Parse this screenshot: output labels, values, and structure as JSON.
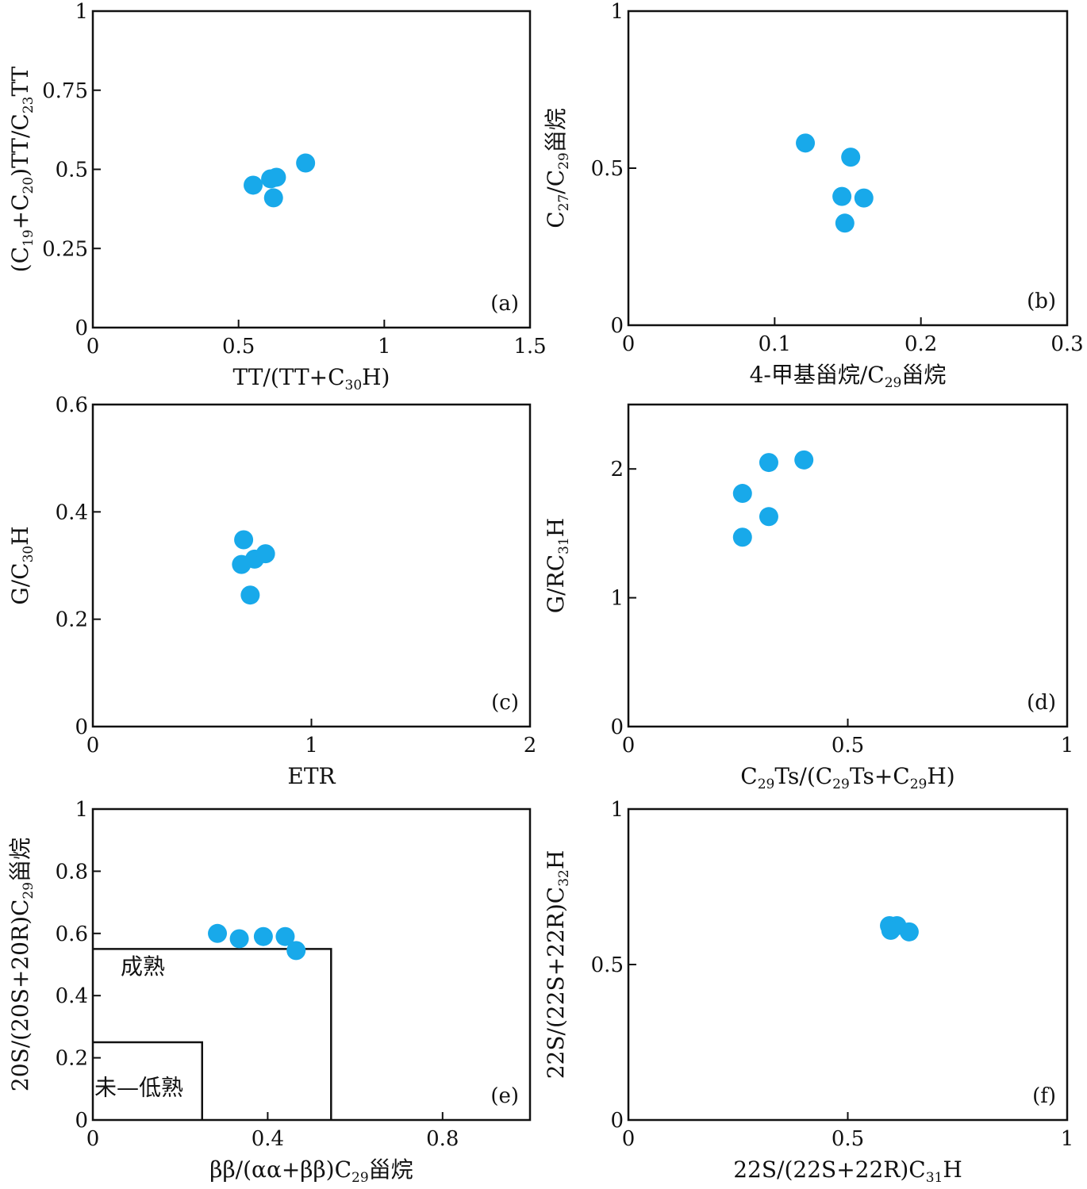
{
  "colors": {
    "point": "#18a9ea",
    "axis": "#111111"
  },
  "chart_data": [
    {
      "type": "scatter",
      "panel_label": "(a)",
      "xlabel": [
        {
          "t": "TT/(TT+C"
        },
        {
          "t": "30",
          "sub": true
        },
        {
          "t": "H)"
        }
      ],
      "ylabel": [
        {
          "t": "(C"
        },
        {
          "t": "19",
          "sub": true
        },
        {
          "t": "+C"
        },
        {
          "t": "20",
          "sub": true
        },
        {
          "t": ")TT/C"
        },
        {
          "t": "23",
          "sub": true
        },
        {
          "t": "TT"
        }
      ],
      "xlim": [
        0,
        1.5
      ],
      "ylim": [
        0,
        1
      ],
      "xticks": [
        0,
        0.5,
        1,
        1.5
      ],
      "xtick_labels": [
        "0",
        "0.5",
        "1",
        "1.5"
      ],
      "yticks": [
        0,
        0.25,
        0.5,
        0.75,
        1
      ],
      "ytick_labels": [
        "0",
        "0.25",
        "0.5",
        "0.75",
        "1"
      ],
      "points": [
        [
          0.55,
          0.45
        ],
        [
          0.61,
          0.47
        ],
        [
          0.63,
          0.475
        ],
        [
          0.62,
          0.41
        ],
        [
          0.73,
          0.52
        ]
      ]
    },
    {
      "type": "scatter",
      "panel_label": "(b)",
      "xlabel": [
        {
          "t": "4-甲基甾烷/C"
        },
        {
          "t": "29",
          "sub": true
        },
        {
          "t": "甾烷"
        }
      ],
      "ylabel": [
        {
          "t": "C"
        },
        {
          "t": "27",
          "sub": true
        },
        {
          "t": "/C"
        },
        {
          "t": "29",
          "sub": true
        },
        {
          "t": "甾烷"
        }
      ],
      "xlim": [
        0,
        0.3
      ],
      "ylim": [
        0,
        1
      ],
      "xticks": [
        0,
        0.1,
        0.2,
        0.3
      ],
      "xtick_labels": [
        "0",
        "0.1",
        "0.2",
        "0.3"
      ],
      "yticks": [
        0,
        0.5,
        1
      ],
      "ytick_labels": [
        "0",
        "0.5",
        "1"
      ],
      "points": [
        [
          0.121,
          0.58
        ],
        [
          0.152,
          0.535
        ],
        [
          0.146,
          0.41
        ],
        [
          0.161,
          0.405
        ],
        [
          0.148,
          0.325
        ]
      ]
    },
    {
      "type": "scatter",
      "panel_label": "(c)",
      "xlabel": [
        {
          "t": "ETR"
        }
      ],
      "ylabel": [
        {
          "t": "G/C"
        },
        {
          "t": "30",
          "sub": true
        },
        {
          "t": "H"
        }
      ],
      "xlim": [
        0,
        2
      ],
      "ylim": [
        0,
        0.6
      ],
      "xticks": [
        0,
        1,
        2
      ],
      "xtick_labels": [
        "0",
        "1",
        "2"
      ],
      "yticks": [
        0,
        0.2,
        0.4,
        0.6
      ],
      "ytick_labels": [
        "0",
        "0.2",
        "0.4",
        "0.6"
      ],
      "points": [
        [
          0.69,
          0.348
        ],
        [
          0.68,
          0.302
        ],
        [
          0.74,
          0.312
        ],
        [
          0.79,
          0.322
        ],
        [
          0.72,
          0.245
        ]
      ]
    },
    {
      "type": "scatter",
      "panel_label": "(d)",
      "xlabel": [
        {
          "t": "C"
        },
        {
          "t": "29",
          "sub": true
        },
        {
          "t": "Ts/(C"
        },
        {
          "t": "29",
          "sub": true
        },
        {
          "t": "Ts+C"
        },
        {
          "t": "29",
          "sub": true
        },
        {
          "t": "H)"
        }
      ],
      "ylabel": [
        {
          "t": "G/RC"
        },
        {
          "t": "31",
          "sub": true
        },
        {
          "t": "H"
        }
      ],
      "xlim": [
        0,
        1
      ],
      "ylim": [
        0,
        2.5
      ],
      "xticks": [
        0,
        0.5,
        1
      ],
      "xtick_labels": [
        "0",
        "0.5",
        "1"
      ],
      "yticks": [
        0,
        1,
        2
      ],
      "ytick_labels": [
        "0",
        "1",
        "2"
      ],
      "points": [
        [
          0.26,
          1.81
        ],
        [
          0.26,
          1.47
        ],
        [
          0.32,
          2.05
        ],
        [
          0.32,
          1.63
        ],
        [
          0.4,
          2.07
        ]
      ]
    },
    {
      "type": "scatter",
      "panel_label": "(e)",
      "xlabel": [
        {
          "t": "ββ/(αα+ββ)C"
        },
        {
          "t": "29",
          "sub": true
        },
        {
          "t": "甾烷"
        }
      ],
      "ylabel": [
        {
          "t": "20S/(20S+20R)C"
        },
        {
          "t": "29",
          "sub": true
        },
        {
          "t": "甾烷"
        }
      ],
      "xlim": [
        0,
        1
      ],
      "ylim": [
        0,
        1
      ],
      "xticks": [
        0,
        0.4,
        0.8
      ],
      "xtick_labels": [
        "0",
        "0.4",
        "0.8"
      ],
      "yticks": [
        0,
        0.2,
        0.4,
        0.6,
        0.8,
        1
      ],
      "ytick_labels": [
        "0",
        "0.2",
        "0.4",
        "0.6",
        "0.8",
        "1"
      ],
      "points": [
        [
          0.285,
          0.6
        ],
        [
          0.335,
          0.583
        ],
        [
          0.39,
          0.59
        ],
        [
          0.44,
          0.59
        ],
        [
          0.465,
          0.545
        ]
      ],
      "regions": [
        {
          "label": "成熟",
          "x": [
            0,
            0.545
          ],
          "y": [
            0,
            0.55
          ],
          "label_at": [
            0.06,
            0.47
          ]
        },
        {
          "label": "未—低熟",
          "x": [
            0,
            0.25
          ],
          "y": [
            0,
            0.25
          ],
          "label_at": [
            0.0,
            0.08
          ]
        }
      ]
    },
    {
      "type": "scatter",
      "panel_label": "(f)",
      "xlabel": [
        {
          "t": "22S/(22S+22R)C"
        },
        {
          "t": "31",
          "sub": true
        },
        {
          "t": "H"
        }
      ],
      "ylabel": [
        {
          "t": "22S/(22S+22R)C"
        },
        {
          "t": "32",
          "sub": true
        },
        {
          "t": "H"
        }
      ],
      "xlim": [
        0,
        1
      ],
      "ylim": [
        0,
        1
      ],
      "xticks": [
        0,
        0.5,
        1
      ],
      "xtick_labels": [
        "0",
        "0.5",
        "1"
      ],
      "yticks": [
        0,
        0.5,
        1
      ],
      "ytick_labels": [
        "0",
        "0.5",
        "1"
      ],
      "points": [
        [
          0.595,
          0.625
        ],
        [
          0.612,
          0.625
        ],
        [
          0.598,
          0.61
        ],
        [
          0.64,
          0.605
        ]
      ]
    }
  ]
}
